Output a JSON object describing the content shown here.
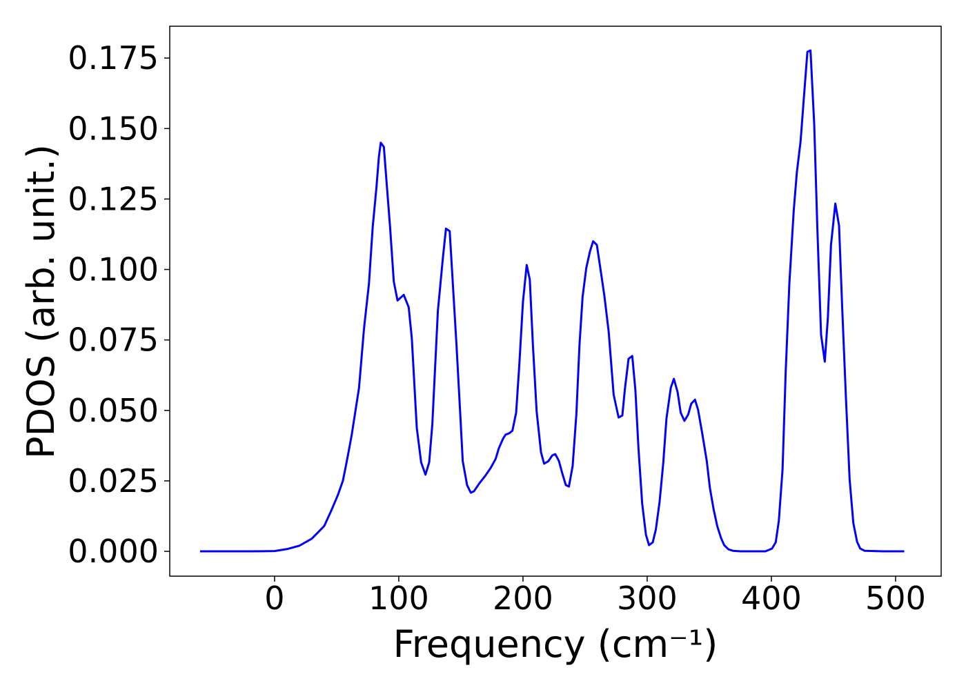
{
  "chart_data": {
    "type": "line",
    "x_label": "Frequency (cm⁻¹)",
    "y_label": "PDOS (arb. unit.)",
    "color": "#0000ff",
    "xlim": [
      -84.4,
      536.7
    ],
    "ylim": [
      -0.0088,
      0.1863
    ],
    "xticks": [
      0,
      100,
      200,
      300,
      400,
      500
    ],
    "yticks": [
      {
        "value": 0,
        "label": "0.000"
      },
      {
        "value": 0.025,
        "label": "0.025"
      },
      {
        "value": 0.05,
        "label": "0.050"
      },
      {
        "value": 0.075,
        "label": "0.075"
      },
      {
        "value": 0.1,
        "label": "0.100"
      },
      {
        "value": 0.125,
        "label": "0.125"
      },
      {
        "value": 0.15,
        "label": "0.150"
      },
      {
        "value": 0.175,
        "label": "0.175"
      }
    ],
    "x": [
      -60,
      -20,
      0,
      10,
      20,
      30,
      40,
      45.6,
      51,
      55,
      58,
      62,
      68,
      72,
      76,
      79,
      82,
      84,
      85.5,
      88,
      90,
      93,
      96,
      99,
      104,
      108,
      110.5,
      114.5,
      118,
      121.5,
      124.5,
      127,
      131.5,
      135.5,
      138,
      141,
      143,
      146.5,
      149.5,
      151.5,
      155,
      158,
      160.5,
      165,
      169.5,
      174,
      178,
      180.5,
      184,
      186,
      189,
      191.5,
      194.5,
      197,
      200,
      203,
      205.5,
      208,
      211,
      214.5,
      217,
      220.5,
      223.5,
      226,
      229,
      231.5,
      234.5,
      237,
      240,
      243,
      245.5,
      248,
      251,
      254,
      256.5,
      259.5,
      262,
      265.5,
      269,
      273,
      277,
      280,
      282,
      285,
      288,
      290.5,
      293,
      296,
      299,
      301.5,
      304.5,
      307,
      310,
      313,
      315.5,
      319,
      321.5,
      324.5,
      327,
      330,
      333,
      335.5,
      338.5,
      341,
      344.5,
      348,
      350.5,
      353.5,
      356.5,
      359.5,
      362,
      365.5,
      369,
      375,
      395,
      398,
      400.5,
      403.5,
      406,
      409,
      411.5,
      414.5,
      418,
      420.5,
      423.5,
      426,
      429,
      431.5,
      434.5,
      437,
      440,
      443,
      445.5,
      448,
      451.5,
      454.5,
      457,
      460,
      463,
      466,
      469,
      471.5,
      475,
      490,
      507
    ],
    "values": [
      0,
      0,
      0.0001,
      0.0008,
      0.002,
      0.0045,
      0.009,
      0.0144,
      0.02,
      0.025,
      0.0316,
      0.041,
      0.058,
      0.079,
      0.095,
      0.115,
      0.129,
      0.14,
      0.145,
      0.1435,
      0.132,
      0.115,
      0.0957,
      0.089,
      0.091,
      0.0866,
      0.0756,
      0.0438,
      0.0316,
      0.0272,
      0.0316,
      0.045,
      0.0854,
      0.104,
      0.1145,
      0.1136,
      0.0989,
      0.073,
      0.0487,
      0.032,
      0.0235,
      0.0208,
      0.0213,
      0.0242,
      0.0267,
      0.0296,
      0.0328,
      0.0365,
      0.04,
      0.0414,
      0.0419,
      0.0428,
      0.0492,
      0.0658,
      0.0886,
      0.1016,
      0.0964,
      0.0732,
      0.0497,
      0.0352,
      0.0311,
      0.032,
      0.034,
      0.0345,
      0.032,
      0.0279,
      0.0235,
      0.023,
      0.0303,
      0.0487,
      0.0732,
      0.0903,
      0.1006,
      0.1065,
      0.11,
      0.1087,
      0.1013,
      0.0908,
      0.078,
      0.0556,
      0.0475,
      0.0482,
      0.0573,
      0.0683,
      0.0693,
      0.0573,
      0.0365,
      0.0169,
      0.0059,
      0.0022,
      0.0032,
      0.0078,
      0.0176,
      0.0316,
      0.047,
      0.058,
      0.0612,
      0.0565,
      0.0492,
      0.0463,
      0.0485,
      0.0524,
      0.0538,
      0.0502,
      0.0414,
      0.032,
      0.0225,
      0.0149,
      0.0088,
      0.0047,
      0.0022,
      0.0007,
      0.0002,
      0,
      0,
      0.0005,
      0.001,
      0.0032,
      0.0108,
      0.0291,
      0.0634,
      0.0952,
      0.1209,
      0.1344,
      0.1454,
      0.16,
      0.1772,
      0.1777,
      0.1515,
      0.1148,
      0.0769,
      0.0673,
      0.083,
      0.1087,
      0.1234,
      0.1155,
      0.0866,
      0.0548,
      0.0255,
      0.01,
      0.0034,
      0.001,
      0.0002,
      0,
      0
    ]
  }
}
